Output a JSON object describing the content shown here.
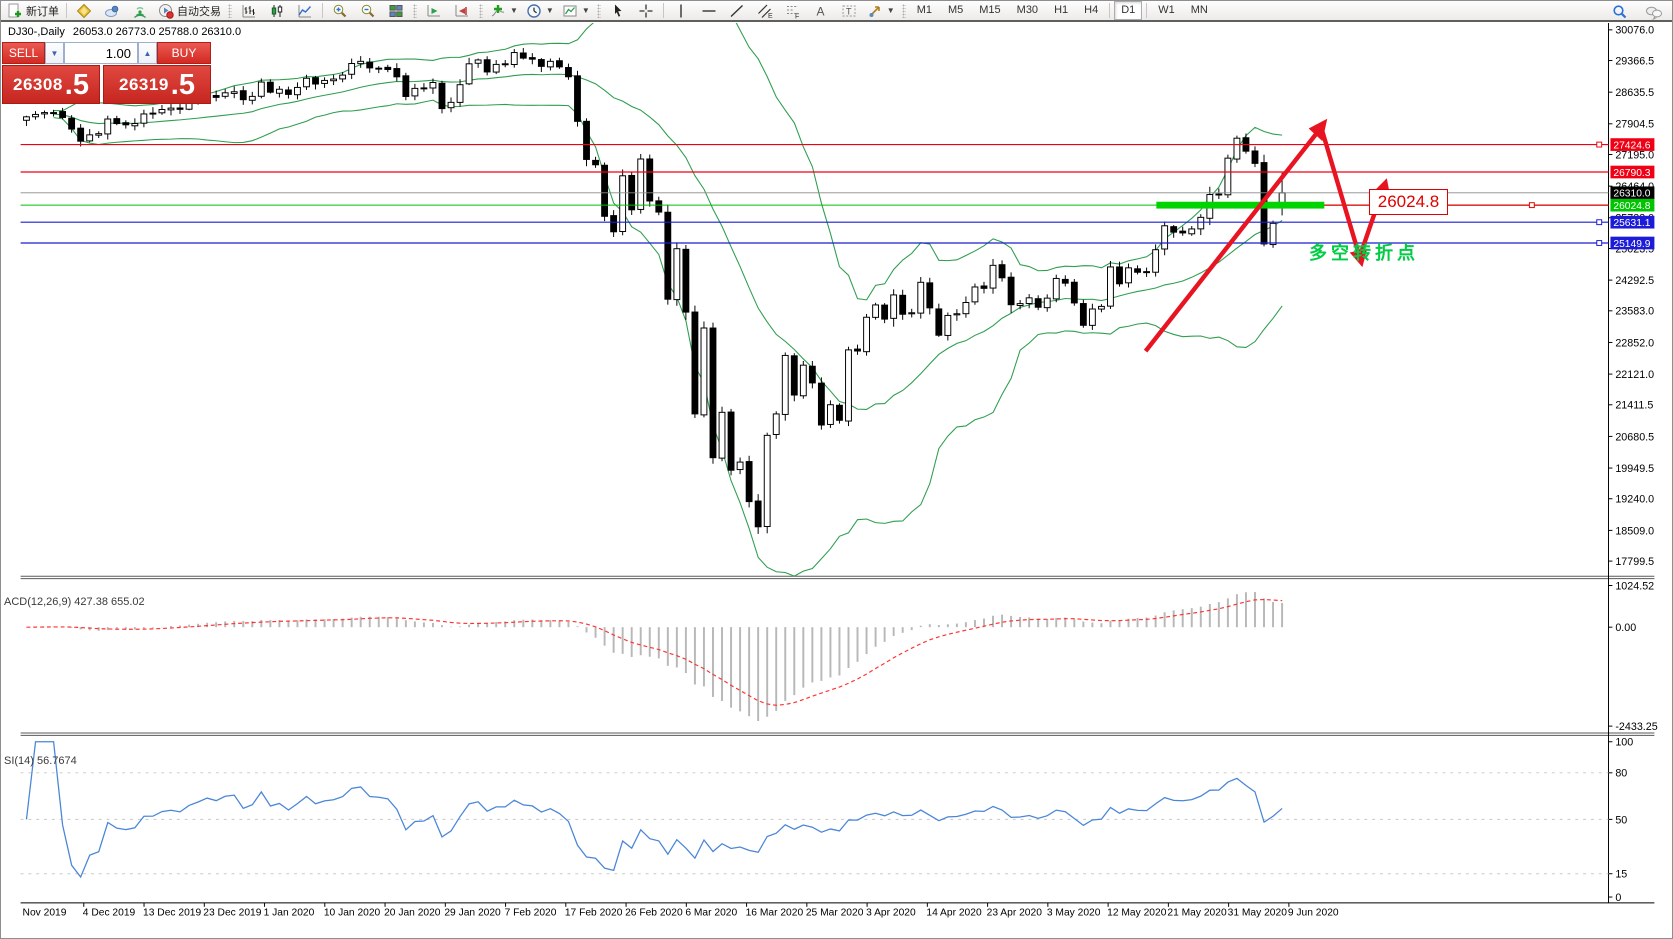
{
  "toolbar": {
    "new_order_label": "新订单",
    "autotrade_label": "自动交易",
    "timeframes": [
      "M1",
      "M5",
      "M15",
      "M30",
      "H1",
      "H4",
      "D1",
      "W1",
      "MN"
    ],
    "active_timeframe": "D1",
    "icon_names": [
      "new-order-icon",
      "metaeditor-icon",
      "mql5-community-icon",
      "signals-icon",
      "autotrading-icon",
      "bar-chart-icon",
      "candlestick-chart-icon",
      "line-chart-icon",
      "zoom-in-icon",
      "zoom-out-icon",
      "tile-windows-icon",
      "auto-scroll-icon",
      "chart-shift-icon",
      "indicators-icon",
      "periods-clock-icon",
      "templates-icon",
      "cursor-icon",
      "crosshair-icon",
      "vertical-line-icon",
      "horizontal-line-icon",
      "trendline-icon",
      "equidistant-channel-icon",
      "fibonacci-icon",
      "text-icon",
      "text-label-icon",
      "arrows-icon",
      "search-icon",
      "chat-icon"
    ]
  },
  "chart": {
    "title_symbol": "DJ30-,Daily",
    "title_ohlc": "26053.0 26773.0 25788.0 26310.0",
    "annotation": "多空转折点",
    "callout_label": "26024.8",
    "bid_line": {
      "value": "26310.0",
      "color": "#8a8a8a",
      "label_bg": "#000000"
    },
    "support_band": {
      "value": "26024.8",
      "color": "#00d400",
      "label_bg": "#00c400"
    },
    "price_lines": [
      {
        "value": "27424.6",
        "color": "#f00014",
        "label_bg": "#f00014",
        "handle": true
      },
      {
        "value": "26790.3",
        "color": "#f00014",
        "label_bg": "#f00014",
        "handle": false
      },
      {
        "value": "25631.1",
        "color": "#1c1cd8",
        "label_bg": "#1c1cd8",
        "handle": true
      },
      {
        "value": "25149.9",
        "color": "#1c1cd8",
        "label_bg": "#1c1cd8",
        "handle": true
      }
    ]
  },
  "trade_panel": {
    "sell_label": "SELL",
    "buy_label": "BUY",
    "volume": "1.00",
    "spin_down": "▼",
    "spin_up": "▲",
    "sell_price_main": "26308",
    "sell_price_big": ".5",
    "buy_price_main": "26319",
    "buy_price_big": ".5"
  },
  "indicators": {
    "macd_label": "ACD(12,26,9) 427.38 655.02",
    "rsi_label": "SI(14) 56.7674"
  },
  "chart_data": {
    "type": "candlestick",
    "symbol": "DJ30-",
    "period": "Daily",
    "current_candle": {
      "open": 26053.0,
      "high": 26773.0,
      "low": 25788.0,
      "close": 26310.0
    },
    "bid": 26310.0,
    "ask": 26319.5,
    "sell_quote": 26308.5,
    "buy_quote": 26319.5,
    "price_axis_ticks": [
      "30076.0",
      "29366.5",
      "28635.5",
      "27904.5",
      "27195.0",
      "26464.0",
      "25733.0",
      "25023.5",
      "24292.5",
      "23583.0",
      "22852.0",
      "22121.0",
      "21411.5",
      "20680.5",
      "19949.5",
      "19240.0",
      "18509.0",
      "17799.5"
    ],
    "price_axis_range": [
      17799.5,
      30076.0
    ],
    "date_axis_ticks": [
      "Nov 2019",
      "4 Dec 2019",
      "13 Dec 2019",
      "23 Dec 2019",
      "1 Jan 2020",
      "10 Jan 2020",
      "20 Jan 2020",
      "29 Jan 2020",
      "7 Feb 2020",
      "17 Feb 2020",
      "26 Feb 2020",
      "6 Mar 2020",
      "16 Mar 2020",
      "25 Mar 2020",
      "3 Apr 2020",
      "14 Apr 2020",
      "23 Apr 2020",
      "3 May 2020",
      "12 May 2020",
      "21 May 2020",
      "31 May 2020",
      "9 Jun 2020"
    ],
    "closes": [
      28066,
      28121,
      28164,
      28164,
      28051,
      27783,
      27503,
      27649,
      27677,
      28015,
      27910,
      27881,
      27911,
      28132,
      28135,
      28235,
      28267,
      28239,
      28377,
      28455,
      28551,
      28515,
      28621,
      28645,
      28462,
      28538,
      28869,
      28635,
      28703,
      28584,
      28745,
      28957,
      28824,
      28907,
      28939,
      29030,
      29298,
      29348,
      29196,
      29186,
      29160,
      28990,
      28536,
      28723,
      28734,
      28859,
      28256,
      28400,
      28808,
      29291,
      29380,
      29103,
      29277,
      29276,
      29551,
      29423,
      29398,
      29232,
      29348,
      29220,
      28992,
      27961,
      27081,
      26958,
      25767,
      25409,
      26703,
      25917,
      27091,
      26121,
      25865,
      23851,
      25018,
      23553,
      21201,
      23186,
      20189,
      21237,
      19899,
      20087,
      19174,
      18592,
      20705,
      21200,
      22552,
      21637,
      22327,
      21917,
      20944,
      21413,
      21053,
      22680,
      22654,
      23434,
      23719,
      23391,
      23950,
      23504,
      23538,
      24242,
      23651,
      23019,
      23476,
      23515,
      23775,
      24134,
      24102,
      24634,
      24346,
      23724,
      23750,
      23883,
      23665,
      23876,
      24331,
      24222,
      23765,
      23248,
      23625,
      23685,
      24597,
      24207,
      24576,
      24474,
      24465,
      24995,
      25548,
      25401,
      25383,
      25475,
      25743,
      26270,
      26282,
      27111,
      27572,
      27272,
      26990,
      25128,
      25605
    ],
    "overlays": {
      "bollinger_bands": {
        "period": 20,
        "deviation": 2,
        "color": "#2f9e4f"
      },
      "horizontal_lines": [
        27424.6,
        26790.3,
        25631.1,
        25149.9
      ],
      "support_band_price": 26024.8,
      "trend_arrows": "up-down-up zigzag, red"
    },
    "sub_charts": [
      {
        "name": "MACD",
        "params": "12,26,9",
        "main_value": 427.38,
        "signal_value": 655.02,
        "axis_ticks": [
          "1024.52",
          "0.00",
          "-2433.25"
        ],
        "range": [
          -2433.25,
          1024.52
        ],
        "histogram_color": "#b8b8b8",
        "signal_color": "#ff3232",
        "signal_style": "dashed"
      },
      {
        "name": "RSI",
        "params": "14",
        "value": 56.7674,
        "axis_ticks": [
          "100",
          "80",
          "50",
          "15",
          "0"
        ],
        "levels": [
          80,
          50,
          15
        ],
        "range": [
          0,
          100
        ],
        "line_color": "#4a86d8"
      }
    ]
  }
}
